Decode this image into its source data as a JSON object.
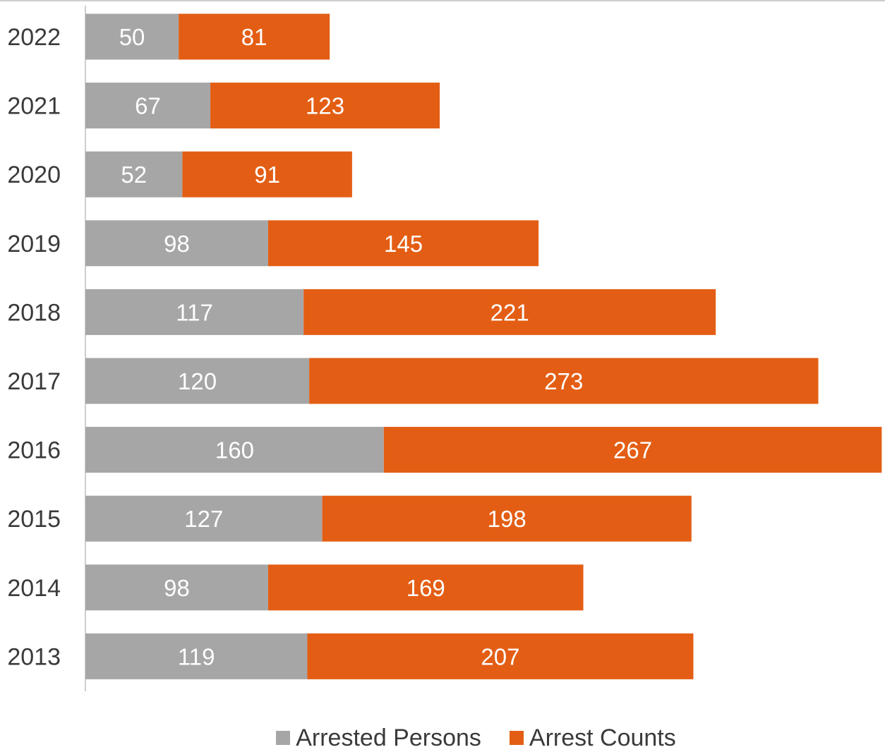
{
  "chart_data": {
    "type": "bar",
    "orientation": "horizontal",
    "stacked": true,
    "categories": [
      "2022",
      "2021",
      "2020",
      "2019",
      "2018",
      "2017",
      "2016",
      "2015",
      "2014",
      "2013"
    ],
    "series": [
      {
        "name": "Arrested Persons",
        "color": "#a6a6a6",
        "values": [
          50,
          67,
          52,
          98,
          117,
          120,
          160,
          127,
          98,
          119
        ]
      },
      {
        "name": "Arrest Counts",
        "color": "#e35e14",
        "values": [
          81,
          123,
          91,
          145,
          221,
          273,
          267,
          198,
          169,
          207
        ]
      }
    ],
    "xlim": [
      0,
      428
    ],
    "grid": false,
    "data_labels": true,
    "legend_position": "bottom"
  }
}
